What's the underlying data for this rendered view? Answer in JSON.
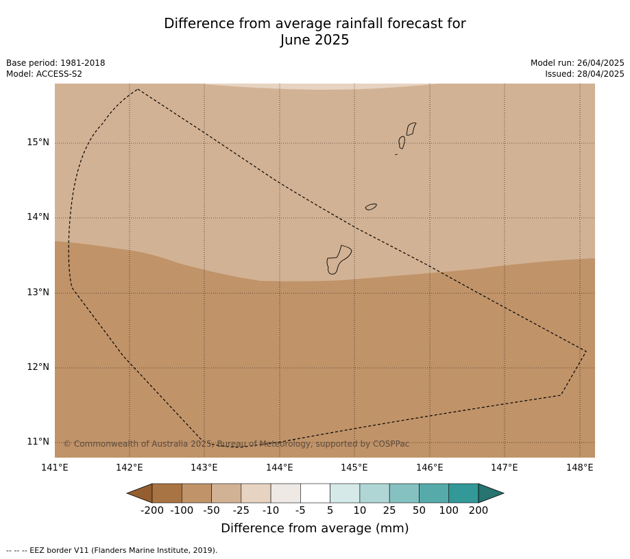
{
  "title": {
    "line1": "Difference from average rainfall forecast for",
    "line2": "June 2025"
  },
  "meta": {
    "base_period": "Base period: 1981-2018",
    "model": "Model: ACCESS-S2",
    "model_run": "Model run: 26/04/2025",
    "issued": "Issued: 28/04/2025"
  },
  "map": {
    "lon_range": [
      141,
      148.2
    ],
    "lat_range": [
      10.8,
      15.8
    ],
    "x_ticks": [
      "141°E",
      "142°E",
      "143°E",
      "144°E",
      "145°E",
      "146°E",
      "147°E",
      "148°E"
    ],
    "y_ticks": [
      "15°N",
      "14°N",
      "13°N",
      "12°N",
      "11°N"
    ],
    "copyright": "© Commonwealth of Australia 2025, Bureau of Meteorology, supported by COSPPac",
    "colors": {
      "lt_minus_100": "#a97443",
      "minus_100_to_minus_50": "#c09369",
      "minus_50_to_minus_25": "#d2b294",
      "minus_25_to_minus_10": "#e6d3c1",
      "minus_10_to_minus_5": "#efe9e6",
      "minus_5_to_5": "#ffffff",
      "5_to_10": "#d5e9e9",
      "10_to_25": "#afd6d5",
      "25_to_50": "#85c1c1",
      "50_to_100": "#56aaaa",
      "100_to_200": "#329898",
      "gt_200": "#277470"
    }
  },
  "colorbar": {
    "labels": [
      "-200",
      "-100",
      "-50",
      "-25",
      "-10",
      "-5",
      "5",
      "10",
      "25",
      "50",
      "100",
      "200"
    ],
    "colors": [
      "#a97443",
      "#c09369",
      "#d2b294",
      "#e6d3c1",
      "#efe9e6",
      "#ffffff",
      "#d5e9e9",
      "#afd6d5",
      "#85c1c1",
      "#56aaaa",
      "#329898"
    ],
    "low_extend_color": "#955e30",
    "high_extend_color": "#277470",
    "title": "Difference from average (mm)"
  },
  "footnote": "--  --  -- EEZ border V11 (Flanders Marine Institute, 2019)."
}
